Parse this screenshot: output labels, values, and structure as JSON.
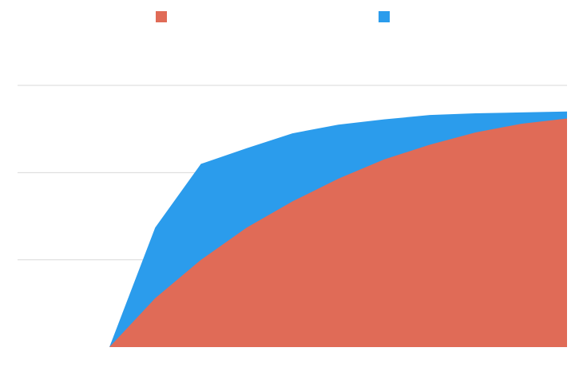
{
  "chart_data": {
    "type": "area",
    "stacked": false,
    "title": "",
    "xlabel": "",
    "ylabel": "",
    "x": [
      0,
      1,
      2,
      3,
      4,
      5,
      6,
      7,
      8,
      9,
      10
    ],
    "xlim": [
      0,
      10
    ],
    "ylim": [
      0,
      3
    ],
    "grid": true,
    "legend": "top",
    "series": [
      {
        "color": "#e06b57",
        "values": [
          0,
          0.56,
          1.0,
          1.37,
          1.67,
          1.93,
          2.15,
          2.32,
          2.46,
          2.56,
          2.62
        ]
      },
      {
        "color": "#2b9cec",
        "values": [
          0,
          1.37,
          2.1,
          2.28,
          2.45,
          2.55,
          2.61,
          2.66,
          2.68,
          2.69,
          2.7
        ]
      }
    ]
  }
}
